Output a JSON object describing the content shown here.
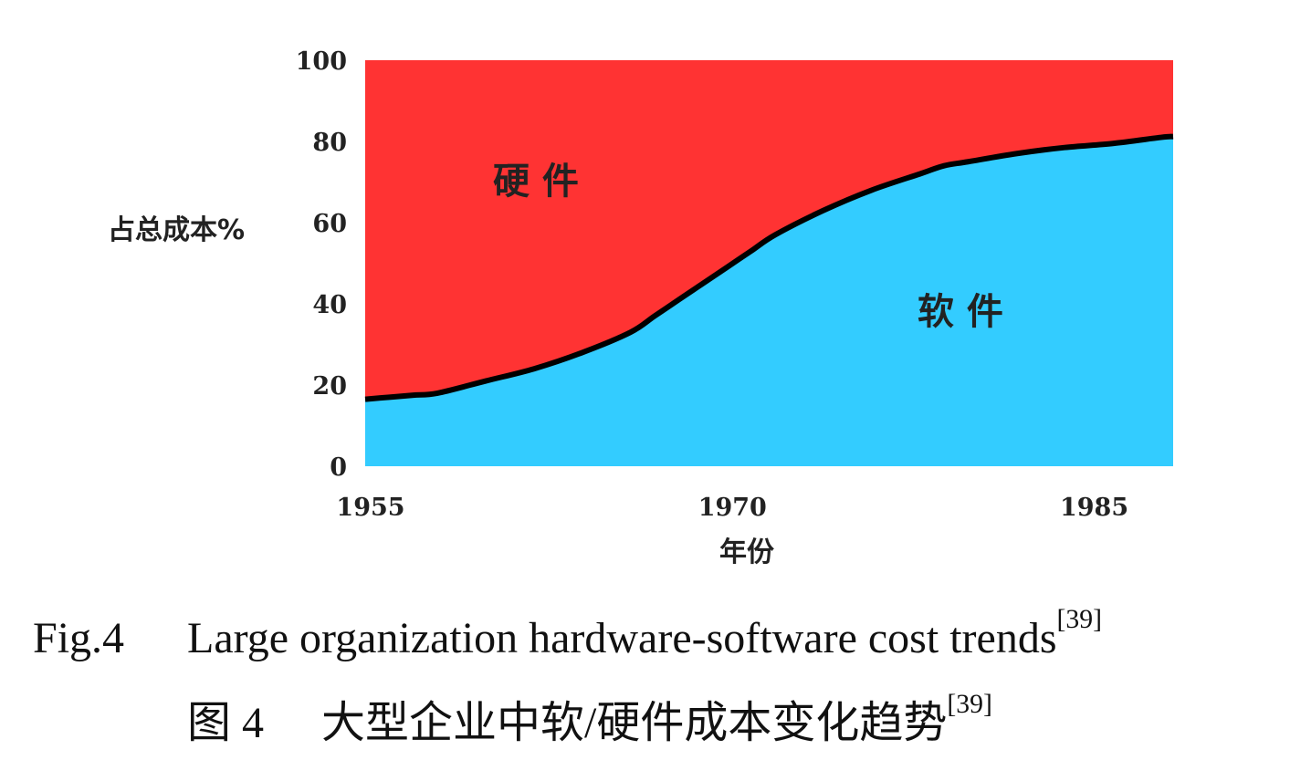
{
  "chart_data": {
    "type": "area",
    "ylabel": "占总成本%",
    "xlabel": "年份",
    "xlim": [
      1955,
      1988.5
    ],
    "ylim": [
      0,
      100
    ],
    "x_ticks": [
      1955,
      1970,
      1985
    ],
    "y_ticks": [
      0,
      20,
      40,
      60,
      80,
      100
    ],
    "x": [
      1955,
      1956,
      1957,
      1958,
      1960,
      1962,
      1964,
      1966,
      1967,
      1968,
      1969,
      1970,
      1971,
      1972,
      1974,
      1976,
      1978,
      1979,
      1980,
      1982,
      1984,
      1986,
      1988,
      1988.5
    ],
    "series": [
      {
        "name": "软 件",
        "color": "#33ccff",
        "values": [
          16.5,
          17,
          17.5,
          18,
          21,
          24,
          28,
          33,
          37,
          41,
          45,
          49,
          53,
          57,
          63,
          68,
          72,
          74,
          75,
          77,
          78.5,
          79.5,
          81,
          81.2
        ]
      },
      {
        "name": "硬 件",
        "color": "#ff3333",
        "values": [
          83.5,
          83,
          82.5,
          82,
          79,
          76,
          72,
          67,
          63,
          59,
          55,
          51,
          47,
          43,
          37,
          32,
          28,
          26,
          25,
          23,
          21.5,
          20.5,
          19,
          18.8
        ]
      }
    ],
    "boundary_color": "#000000"
  },
  "caption": {
    "en_number": "Fig.4",
    "en_text": "Large organization hardware-software cost trends",
    "en_ref": "[39]",
    "cn_number": "图 4",
    "cn_text": "大型企业中软/硬件成本变化趋势",
    "cn_ref": "[39]"
  }
}
